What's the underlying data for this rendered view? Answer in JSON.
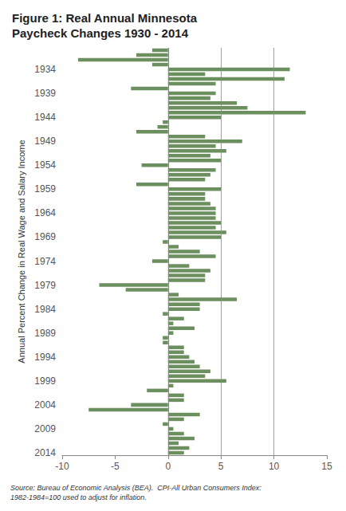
{
  "chart_data": {
    "type": "bar",
    "orientation": "horizontal",
    "title": "Figure 1: Real Annual Minnesota\nPaycheck Changes 1930 - 2014",
    "ylabel": "Annual Percent Change in Real Wage and Salary Income",
    "annotations": [
      "Source: Bureau of Economic Analysis (BEA).  CPI-All Urban Consumers Index:\n1982-1984=100 used to adjust for inflation."
    ],
    "categories": [
      null,
      null,
      null,
      null,
      "1934",
      null,
      null,
      null,
      null,
      "1939",
      null,
      null,
      null,
      null,
      "1944",
      null,
      null,
      null,
      null,
      "1949",
      null,
      null,
      null,
      null,
      "1954",
      null,
      null,
      null,
      null,
      "1959",
      null,
      null,
      null,
      null,
      "1964",
      null,
      null,
      null,
      null,
      "1969",
      null,
      null,
      null,
      null,
      "1974",
      null,
      null,
      null,
      null,
      "1979",
      null,
      null,
      null,
      null,
      "1984",
      null,
      null,
      null,
      null,
      "1989",
      null,
      null,
      null,
      null,
      "1994",
      null,
      null,
      null,
      null,
      "1999",
      null,
      null,
      null,
      null,
      "2004",
      null,
      null,
      null,
      null,
      "2009",
      null,
      null,
      null,
      null,
      "2014"
    ],
    "values": [
      -1.5,
      -3.0,
      -8.5,
      -1.5,
      11.5,
      3.5,
      11.0,
      4.5,
      -3.5,
      4.5,
      4.0,
      6.5,
      7.5,
      13.0,
      5.0,
      -0.5,
      -1.0,
      -3.0,
      3.5,
      7.0,
      4.5,
      5.5,
      4.0,
      5.0,
      -2.5,
      4.5,
      4.0,
      3.5,
      -3.0,
      5.0,
      3.5,
      3.5,
      4.0,
      4.5,
      4.5,
      4.5,
      5.0,
      4.5,
      5.5,
      5.0,
      -0.5,
      1.0,
      3.0,
      4.5,
      -1.5,
      2.0,
      4.0,
      3.5,
      3.5,
      -6.5,
      -4.0,
      1.0,
      6.5,
      3.0,
      3.0,
      -0.5,
      1.5,
      0.5,
      2.5,
      0.5,
      -0.5,
      -0.5,
      1.5,
      1.5,
      2.0,
      2.5,
      3.0,
      4.0,
      3.5,
      5.5,
      0.5,
      -2.0,
      1.5,
      1.5,
      -3.5,
      -7.5,
      3.0,
      1.5,
      -0.5,
      0.5,
      1.5,
      2.5,
      1.0,
      2.0,
      1.5
    ],
    "color": "#6b8f5e",
    "xlim": [
      -10,
      15
    ],
    "xticks": [
      -10,
      -5,
      0,
      5,
      10,
      15
    ],
    "vlines": [
      0,
      5,
      10
    ],
    "grid": false
  }
}
